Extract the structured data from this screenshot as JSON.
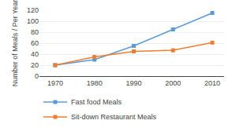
{
  "chart_data": {
    "type": "line",
    "x": [
      1970,
      1980,
      1990,
      2000,
      2010
    ],
    "series": [
      {
        "name": "Fast food Meals",
        "color": "#5B9BD5",
        "values": [
          20,
          30,
          55,
          85,
          115
        ],
        "marker": "square"
      },
      {
        "name": "Sit-down Restaurant Meals",
        "color": "#ED7D31",
        "values": [
          20,
          35,
          45,
          47,
          61
        ],
        "marker": "square"
      }
    ],
    "y_label": "Number of Meals / Per Year",
    "xlim": [
      1966,
      2013
    ],
    "xticks": [
      1970,
      1980,
      1990,
      2000,
      2010
    ],
    "ylim": [
      0,
      120
    ],
    "yticks": [
      0,
      20,
      40,
      60,
      80,
      100,
      120
    ],
    "grid": "y",
    "legend": "bottom"
  }
}
